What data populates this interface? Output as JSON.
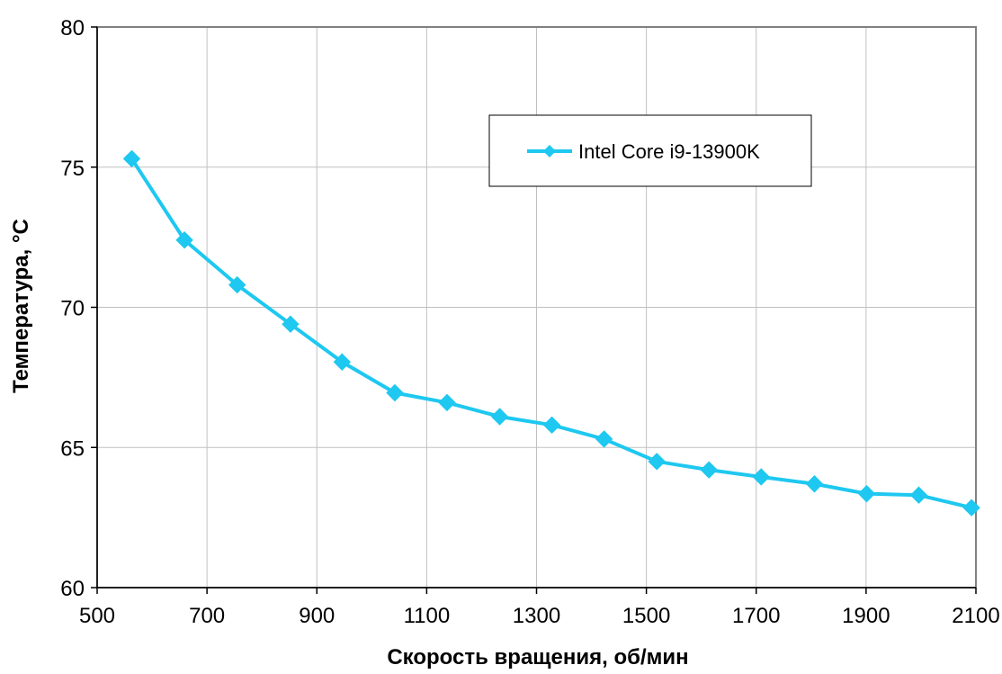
{
  "chart_data": {
    "type": "line",
    "title": "",
    "xlabel": "Скорость вращения, об/мин",
    "ylabel": "Температура, °C",
    "xlim": [
      500,
      2100
    ],
    "ylim": [
      60,
      80
    ],
    "x_ticks": [
      "500",
      "700",
      "900",
      "1100",
      "1300",
      "1500",
      "1700",
      "1900",
      "2100"
    ],
    "y_ticks": [
      "60",
      "65",
      "70",
      "75",
      "80"
    ],
    "grid": true,
    "legend_position": "top-right",
    "series": [
      {
        "name": "Intel Core i9-13900K",
        "color": "#1ec8f0",
        "marker": "diamond",
        "x": [
          563,
          659,
          755,
          852,
          946,
          1042,
          1137,
          1233,
          1328,
          1423,
          1519,
          1614,
          1709,
          1806,
          1901,
          1996,
          2092
        ],
        "y": [
          75.3,
          72.4,
          70.8,
          69.4,
          68.05,
          66.95,
          66.6,
          66.1,
          65.8,
          65.3,
          64.5,
          64.2,
          63.95,
          63.7,
          63.35,
          63.3,
          62.85
        ]
      }
    ]
  }
}
